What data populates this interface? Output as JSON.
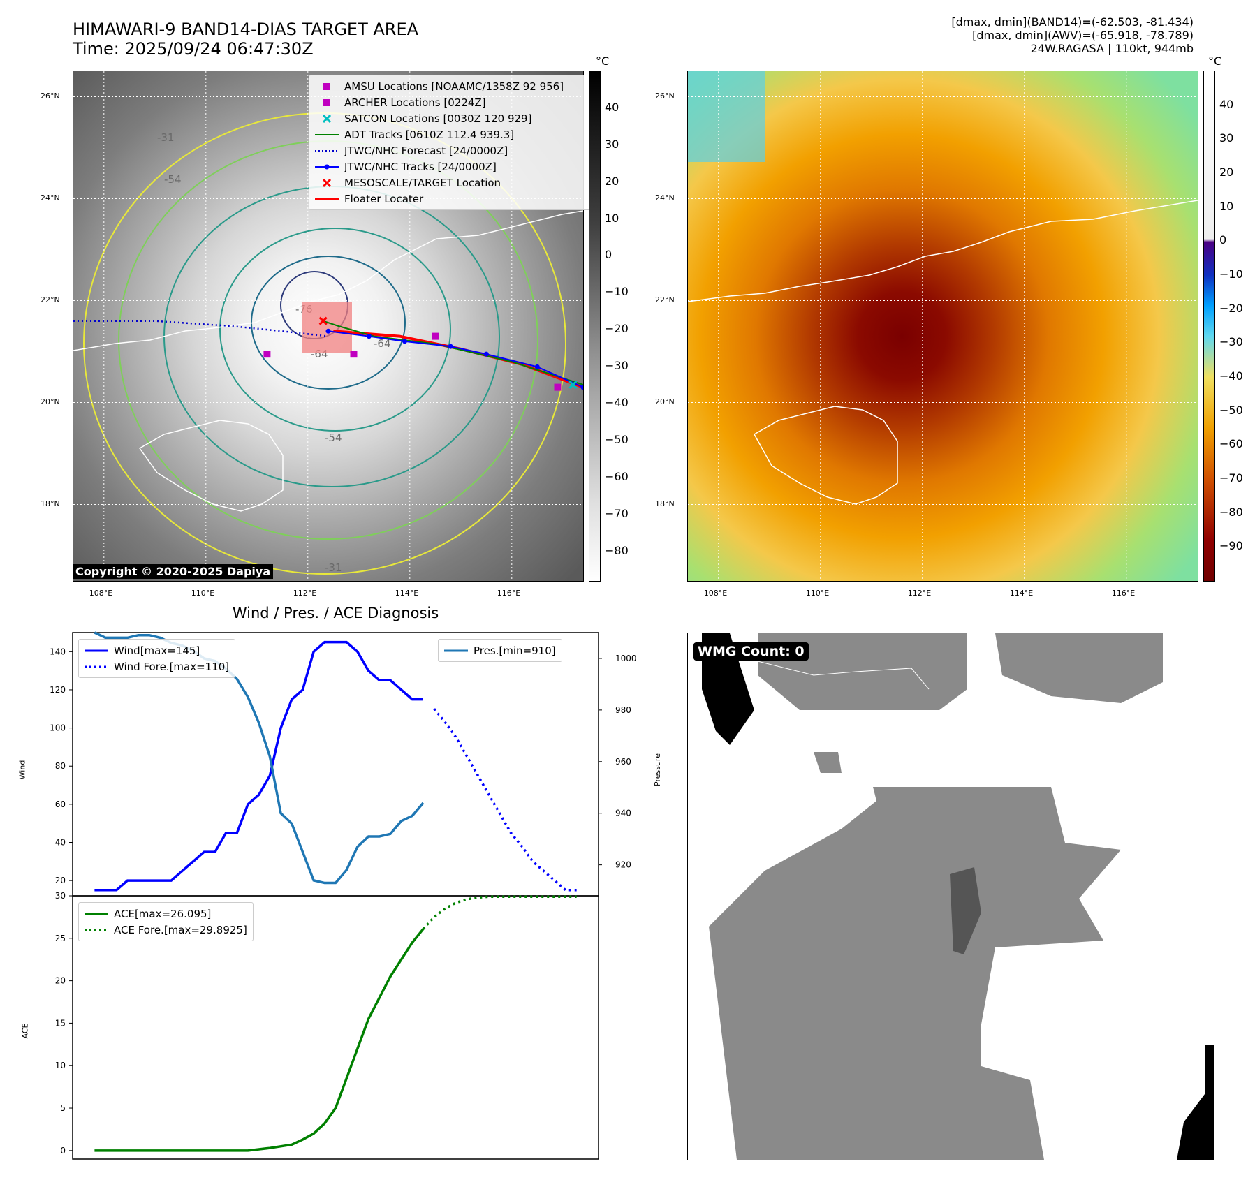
{
  "header": {
    "title_line1": "HIMAWARI-9 BAND14-DIAS TARGET AREA",
    "title_line2": "Time: 2025/09/24 06:47:30Z",
    "info_line1": "[dmax, dmin](BAND14)=(-62.503, -81.434)",
    "info_line2": "[dmax, dmin](AWV)=(-65.918, -78.789)",
    "info_line3": "24W.RAGASA | 110kt, 944mb"
  },
  "map": {
    "lat_labels": [
      "26°N",
      "24°N",
      "22°N",
      "20°N",
      "18°N"
    ],
    "lon_labels": [
      "108°E",
      "110°E",
      "112°E",
      "114°E",
      "116°E"
    ],
    "lon_range": [
      107.4,
      117.4
    ],
    "lat_range": [
      16.5,
      26.5
    ],
    "copyright": "Copyright © 2020-2025 Dapiya",
    "contour_labels": [
      "-76",
      "-64",
      "-64",
      "-54",
      "-54",
      "-31",
      "-31"
    ],
    "legend": [
      {
        "label": "AMSU Locations [NOAAMC/1358Z 92 956]",
        "symbol": "square",
        "color": "#c000c0"
      },
      {
        "label": "ARCHER Locations [0224Z]",
        "symbol": "square",
        "color": "#c000c0"
      },
      {
        "label": "SATCON Locations [0030Z 120 929]",
        "symbol": "x",
        "color": "#00bfbf"
      },
      {
        "label": "ADT Tracks [0610Z 112.4 939.3]",
        "symbol": "line",
        "color": "#008000"
      },
      {
        "label": "JTWC/NHC Forecast [24/0000Z]",
        "symbol": "dotted",
        "color": "#0000cc"
      },
      {
        "label": "JTWC/NHC Tracks [24/0000Z]",
        "symbol": "line-dot",
        "color": "#0000ff"
      },
      {
        "label": "MESOSCALE/TARGET Location",
        "symbol": "x",
        "color": "#ff0000"
      },
      {
        "label": "Floater Locater",
        "symbol": "line",
        "color": "#ff0000"
      }
    ],
    "forecast_track": [
      [
        107.4,
        21.6
      ],
      [
        109.0,
        21.6
      ],
      [
        110.5,
        21.5
      ],
      [
        111.5,
        21.4
      ],
      [
        112.4,
        21.3
      ]
    ],
    "best_track": [
      [
        117.4,
        20.3
      ],
      [
        116.5,
        20.7
      ],
      [
        115.5,
        20.95
      ],
      [
        114.8,
        21.1
      ],
      [
        113.9,
        21.2
      ],
      [
        113.2,
        21.3
      ],
      [
        112.4,
        21.4
      ]
    ],
    "adt_track": [
      [
        117.4,
        20.35
      ],
      [
        116.0,
        20.8
      ],
      [
        114.5,
        21.15
      ],
      [
        113.3,
        21.3
      ],
      [
        112.6,
        21.5
      ],
      [
        112.3,
        21.6
      ]
    ],
    "floater_track": [
      [
        117.4,
        20.3
      ],
      [
        116.2,
        20.75
      ],
      [
        115.0,
        21.05
      ],
      [
        113.8,
        21.3
      ],
      [
        112.5,
        21.4
      ]
    ],
    "amsu_points": [
      [
        114.5,
        21.3
      ],
      [
        112.9,
        20.95
      ],
      [
        111.2,
        20.95
      ],
      [
        116.9,
        20.3
      ]
    ],
    "satcon_points": [
      [
        117.2,
        20.35
      ]
    ],
    "target_points": [
      [
        112.3,
        21.6
      ]
    ]
  },
  "colorbar_left": {
    "unit": "°C",
    "ticks": [
      "40",
      "30",
      "20",
      "10",
      "0",
      "−10",
      "−20",
      "−30",
      "−40",
      "−50",
      "−60",
      "−70",
      "−80"
    ]
  },
  "colorbar_right": {
    "unit": "°C",
    "ticks": [
      "40",
      "30",
      "20",
      "10",
      "0",
      "−10",
      "−20",
      "−30",
      "−40",
      "−50",
      "−60",
      "−70",
      "−80",
      "−90"
    ]
  },
  "chart_data": [
    {
      "type": "line",
      "title": "Wind / Pres. / ACE Diagnosis",
      "ylabel": "Wind",
      "ylim": [
        12,
        150
      ],
      "yticks": [
        20,
        40,
        60,
        80,
        100,
        120,
        140
      ],
      "series": [
        {
          "name": "Wind[max=145]",
          "color": "#0000ff",
          "style": "solid",
          "x": [
            0,
            1,
            2,
            3,
            4,
            5,
            6,
            7,
            8,
            9,
            10,
            11,
            12,
            13,
            14,
            15,
            16,
            17,
            18,
            19,
            20,
            21,
            22,
            23,
            24,
            25,
            26,
            27,
            28,
            29,
            30
          ],
          "values": [
            15,
            15,
            15,
            20,
            20,
            20,
            20,
            20,
            25,
            30,
            35,
            35,
            45,
            45,
            60,
            65,
            75,
            100,
            115,
            120,
            140,
            145,
            145,
            145,
            140,
            130,
            125,
            125,
            120,
            115,
            115
          ]
        },
        {
          "name": "Wind Fore.[max=110]",
          "color": "#0000ff",
          "style": "dotted",
          "x": [
            31,
            32,
            33,
            34,
            35,
            36,
            37,
            38,
            39,
            40,
            41,
            42,
            43,
            44
          ],
          "values": [
            110,
            103,
            95,
            85,
            75,
            65,
            55,
            45,
            38,
            30,
            25,
            20,
            15,
            15
          ]
        },
        {
          "name": "Pres.[min=910]",
          "color": "#1f77b4",
          "style": "solid",
          "axis": "right",
          "x": [
            0,
            1,
            2,
            3,
            4,
            5,
            6,
            7,
            8,
            9,
            10,
            11,
            12,
            13,
            14,
            15,
            16,
            17,
            18,
            19,
            20,
            21,
            22,
            23,
            24,
            25,
            26,
            27,
            28,
            29,
            30
          ],
          "values": [
            1010,
            1008,
            1008,
            1008,
            1009,
            1009,
            1008,
            1006,
            1005,
            1003,
            1000,
            999,
            996,
            992,
            985,
            975,
            962,
            940,
            936,
            925,
            914,
            913,
            913,
            918,
            927,
            931,
            931,
            932,
            937,
            939,
            944
          ]
        }
      ],
      "right_axis": {
        "ylabel": "Pressure",
        "ylim": [
          908,
          1010
        ],
        "yticks": [
          920,
          940,
          960,
          980,
          1000
        ]
      },
      "legend_left": "upper left",
      "legend_right": "upper right"
    },
    {
      "type": "line",
      "ylabel": "ACE",
      "ylim": [
        -1,
        30
      ],
      "yticks": [
        0,
        5,
        10,
        15,
        20,
        25,
        30
      ],
      "series": [
        {
          "name": "ACE[max=26.095]",
          "color": "#008000",
          "style": "solid",
          "x": [
            0,
            2,
            4,
            6,
            8,
            10,
            12,
            14,
            16,
            18,
            19,
            20,
            21,
            22,
            23,
            24,
            25,
            26,
            27,
            28,
            29,
            30
          ],
          "values": [
            0,
            0,
            0,
            0,
            0,
            0,
            0,
            0,
            0.3,
            0.7,
            1.3,
            2.0,
            3.2,
            5.0,
            8.5,
            12.0,
            15.5,
            18.0,
            20.5,
            22.5,
            24.5,
            26.1
          ]
        },
        {
          "name": "ACE Fore.[max=29.8925]",
          "color": "#008000",
          "style": "dotted",
          "x": [
            30,
            31,
            32,
            33,
            34,
            35,
            36,
            38,
            40,
            42,
            44
          ],
          "values": [
            26.1,
            27.5,
            28.5,
            29.2,
            29.6,
            29.8,
            29.9,
            29.9,
            29.9,
            29.9,
            29.9
          ]
        }
      ],
      "xlim": [
        -2,
        46
      ],
      "legend": "upper left"
    }
  ],
  "wmg": {
    "label": "WMG Count: 0"
  }
}
